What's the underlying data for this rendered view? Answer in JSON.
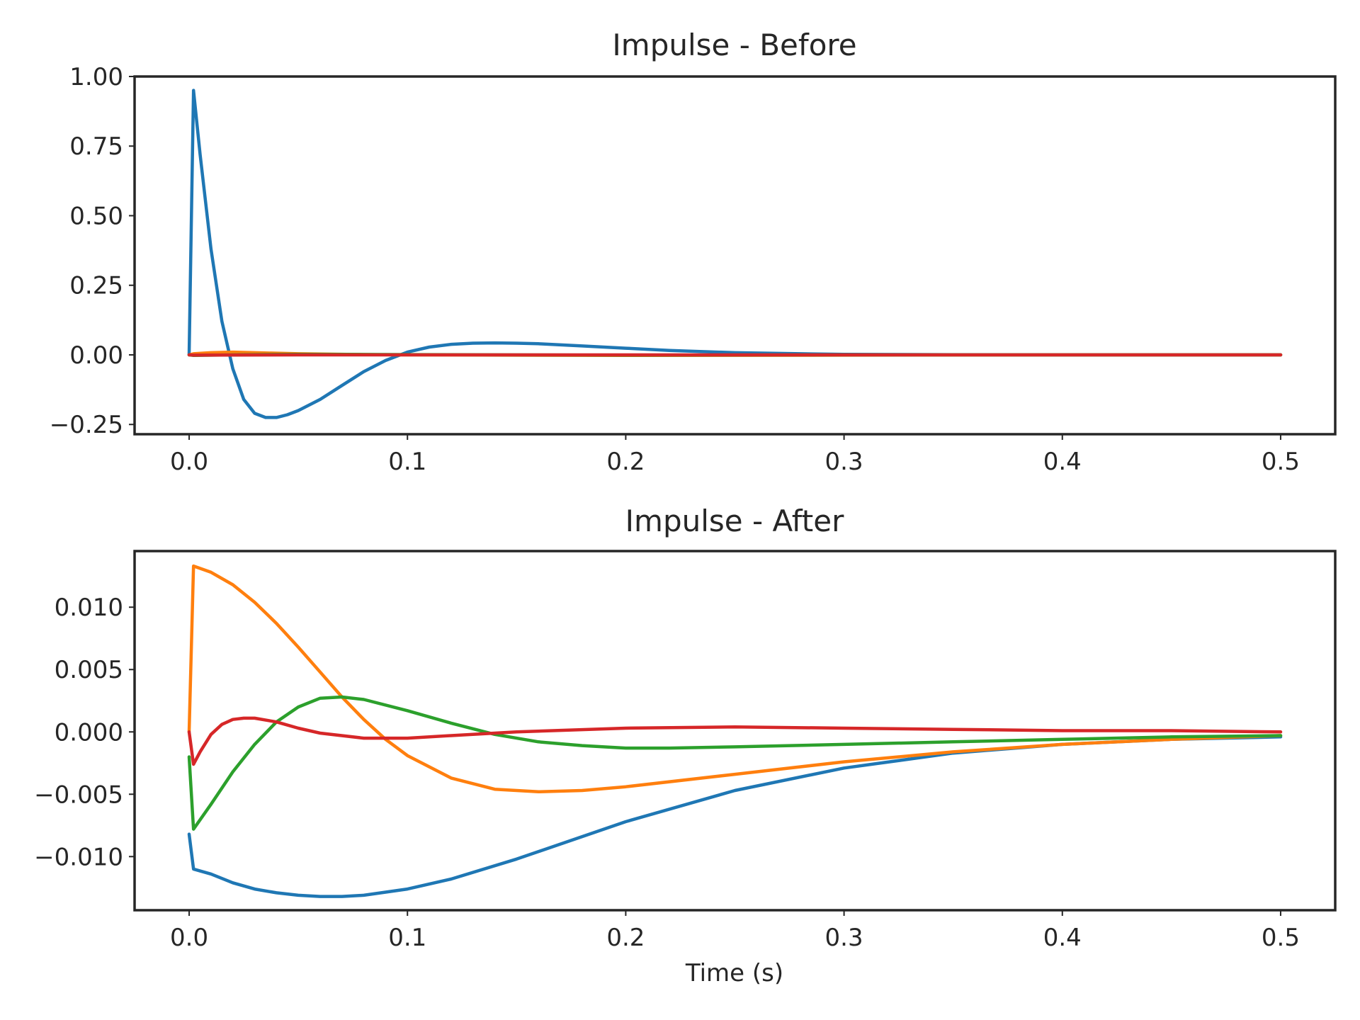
{
  "chart_data": [
    {
      "type": "line",
      "title": "Impulse - Before",
      "xlabel": "",
      "ylabel": "",
      "xlim": [
        -0.025,
        0.525
      ],
      "ylim": [
        -0.285,
        1.0
      ],
      "xticks": [
        0.0,
        0.1,
        0.2,
        0.3,
        0.4,
        0.5
      ],
      "xtick_labels": [
        "0.0",
        "0.1",
        "0.2",
        "0.3",
        "0.4",
        "0.5"
      ],
      "yticks": [
        -0.25,
        0.0,
        0.25,
        0.5,
        0.75,
        1.0
      ],
      "ytick_labels": [
        "−0.25",
        "0.00",
        "0.25",
        "0.50",
        "0.75",
        "1.00"
      ],
      "grid": false,
      "series": [
        {
          "color": "#1f77b4",
          "x": [
            0.0,
            0.002,
            0.005,
            0.01,
            0.015,
            0.02,
            0.025,
            0.03,
            0.035,
            0.04,
            0.045,
            0.05,
            0.06,
            0.07,
            0.08,
            0.09,
            0.1,
            0.11,
            0.12,
            0.13,
            0.14,
            0.15,
            0.16,
            0.18,
            0.2,
            0.22,
            0.25,
            0.28,
            0.3,
            0.35,
            0.4,
            0.45,
            0.5
          ],
          "y": [
            0.0,
            0.95,
            0.72,
            0.38,
            0.12,
            -0.05,
            -0.16,
            -0.21,
            -0.225,
            -0.225,
            -0.215,
            -0.2,
            -0.16,
            -0.11,
            -0.06,
            -0.02,
            0.01,
            0.028,
            0.038,
            0.042,
            0.043,
            0.042,
            0.04,
            0.032,
            0.024,
            0.016,
            0.008,
            0.004,
            0.002,
            0.0005,
            0.0,
            0.0,
            0.0
          ]
        },
        {
          "color": "#ff7f0e",
          "x": [
            0.0,
            0.002,
            0.01,
            0.02,
            0.03,
            0.05,
            0.08,
            0.1,
            0.2,
            0.3,
            0.4,
            0.5
          ],
          "y": [
            0.0,
            0.004,
            0.008,
            0.01,
            0.008,
            0.004,
            0.001,
            0.0,
            -0.002,
            -0.001,
            0.0,
            0.0
          ]
        },
        {
          "color": "#2ca02c",
          "x": [
            0.0,
            0.002,
            0.02,
            0.05,
            0.1,
            0.2,
            0.3,
            0.4,
            0.5
          ],
          "y": [
            0.0,
            -0.002,
            0.0,
            0.002,
            0.001,
            -0.001,
            0.0,
            0.0,
            0.0
          ]
        },
        {
          "color": "#d62728",
          "x": [
            0.0,
            0.002,
            0.05,
            0.1,
            0.2,
            0.3,
            0.4,
            0.5
          ],
          "y": [
            0.0,
            -0.001,
            0.0,
            0.0,
            0.0,
            0.0,
            0.0,
            0.0
          ]
        }
      ]
    },
    {
      "type": "line",
      "title": "Impulse - After",
      "xlabel": "Time (s)",
      "ylabel": "",
      "xlim": [
        -0.025,
        0.525
      ],
      "ylim": [
        -0.0143,
        0.0145
      ],
      "xticks": [
        0.0,
        0.1,
        0.2,
        0.3,
        0.4,
        0.5
      ],
      "xtick_labels": [
        "0.0",
        "0.1",
        "0.2",
        "0.3",
        "0.4",
        "0.5"
      ],
      "yticks": [
        -0.01,
        -0.005,
        0.0,
        0.005,
        0.01
      ],
      "ytick_labels": [
        "−0.010",
        "0.000",
        "0.005",
        "0.010"
      ],
      "ytick_labels_full": [
        "−0.010",
        "−0.005",
        "0.000",
        "0.005",
        "0.010"
      ],
      "grid": false,
      "series": [
        {
          "color": "#1f77b4",
          "x": [
            0.0,
            0.002,
            0.01,
            0.02,
            0.03,
            0.04,
            0.05,
            0.06,
            0.07,
            0.08,
            0.1,
            0.12,
            0.15,
            0.18,
            0.2,
            0.25,
            0.3,
            0.35,
            0.4,
            0.45,
            0.5
          ],
          "y": [
            -0.0082,
            -0.011,
            -0.0114,
            -0.0121,
            -0.0126,
            -0.0129,
            -0.0131,
            -0.0132,
            -0.0132,
            -0.0131,
            -0.0126,
            -0.0118,
            -0.0102,
            -0.0084,
            -0.0072,
            -0.0047,
            -0.0029,
            -0.0017,
            -0.001,
            -0.0006,
            -0.0004
          ]
        },
        {
          "color": "#ff7f0e",
          "x": [
            0.0,
            0.002,
            0.01,
            0.02,
            0.03,
            0.04,
            0.05,
            0.06,
            0.07,
            0.08,
            0.09,
            0.1,
            0.12,
            0.14,
            0.16,
            0.18,
            0.2,
            0.25,
            0.3,
            0.35,
            0.4,
            0.45,
            0.5
          ],
          "y": [
            0.0,
            0.0133,
            0.0128,
            0.0118,
            0.0104,
            0.0087,
            0.0068,
            0.0048,
            0.0028,
            0.001,
            -0.0006,
            -0.0019,
            -0.0037,
            -0.0046,
            -0.0048,
            -0.0047,
            -0.0044,
            -0.0034,
            -0.0024,
            -0.0016,
            -0.001,
            -0.0006,
            -0.0003
          ]
        },
        {
          "color": "#2ca02c",
          "x": [
            0.0,
            0.002,
            0.01,
            0.02,
            0.03,
            0.04,
            0.05,
            0.06,
            0.07,
            0.08,
            0.1,
            0.12,
            0.14,
            0.16,
            0.18,
            0.2,
            0.22,
            0.25,
            0.3,
            0.35,
            0.4,
            0.45,
            0.5
          ],
          "y": [
            -0.002,
            -0.0078,
            -0.0058,
            -0.0032,
            -0.001,
            0.0008,
            0.002,
            0.0027,
            0.0028,
            0.0026,
            0.0017,
            0.0007,
            -0.0002,
            -0.0008,
            -0.0011,
            -0.0013,
            -0.0013,
            -0.0012,
            -0.001,
            -0.0008,
            -0.0006,
            -0.0004,
            -0.0003
          ]
        },
        {
          "color": "#d62728",
          "x": [
            0.0,
            0.002,
            0.005,
            0.01,
            0.015,
            0.02,
            0.025,
            0.03,
            0.04,
            0.05,
            0.06,
            0.08,
            0.1,
            0.12,
            0.15,
            0.2,
            0.25,
            0.3,
            0.35,
            0.4,
            0.45,
            0.5
          ],
          "y": [
            0.0,
            -0.0026,
            -0.0016,
            -0.0002,
            0.0006,
            0.001,
            0.0011,
            0.0011,
            0.0008,
            0.0003,
            -0.0001,
            -0.0005,
            -0.0005,
            -0.0003,
            0.0,
            0.0003,
            0.0004,
            0.0003,
            0.0002,
            0.0001,
            0.0001,
            0.0
          ]
        }
      ]
    }
  ]
}
